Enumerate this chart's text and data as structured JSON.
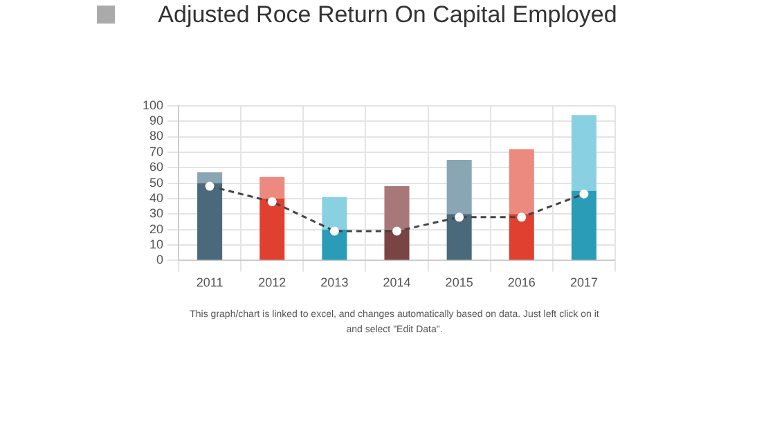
{
  "chart_data": {
    "type": "bar",
    "title": "Adjusted Roce Return On Capital Employed",
    "categories": [
      "2011",
      "2012",
      "2013",
      "2014",
      "2015",
      "2016",
      "2017"
    ],
    "stacked": true,
    "series": [
      {
        "colors": [
          "#4a6a7c",
          "#e0402f",
          "#2a9cb8",
          "#7a4444",
          "#4a6a7c",
          "#e0402f",
          "#2a9cb8"
        ],
        "values": [
          50,
          40,
          20,
          20,
          30,
          30,
          45
        ]
      },
      {
        "colors": [
          "#8aa6b4",
          "#ec8a80",
          "#88d0e2",
          "#a87878",
          "#8aa6b4",
          "#ec8a80",
          "#88d0e2"
        ],
        "values": [
          7,
          14,
          21,
          28,
          35,
          42,
          49
        ]
      },
      {
        "type": "line",
        "color": "#444444",
        "line_style": "dashed",
        "marker": "circle",
        "values": [
          48,
          38,
          19,
          19,
          28,
          28,
          43
        ]
      }
    ],
    "ylim": [
      0,
      100
    ],
    "yticks": [
      0,
      10,
      20,
      30,
      40,
      50,
      60,
      70,
      80,
      90,
      100
    ],
    "grid": true,
    "legend": false,
    "annotations": [
      "This graph/chart is linked to excel, and changes automatically based on data. Just left click on it and select \"Edit Data\"."
    ]
  }
}
